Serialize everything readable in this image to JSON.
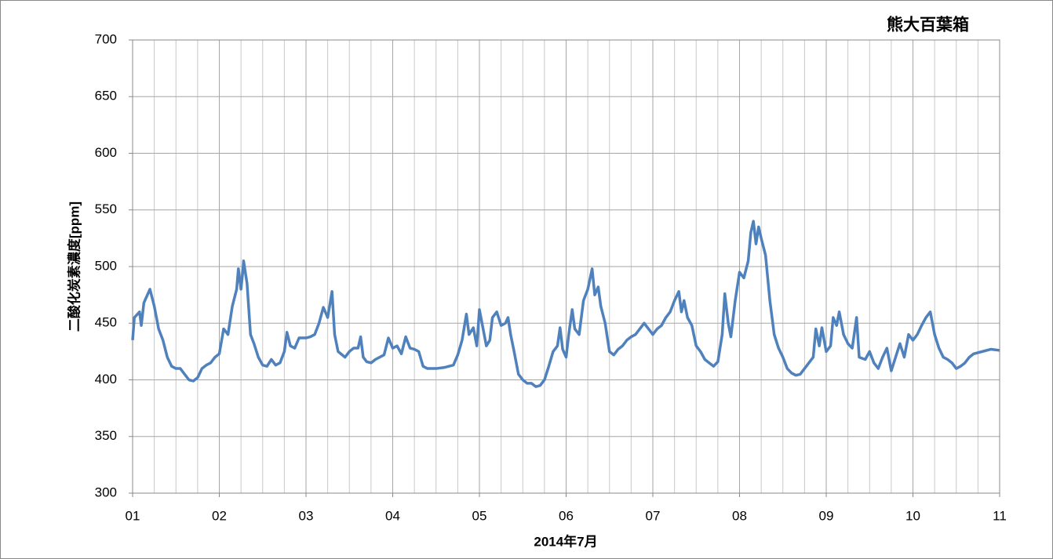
{
  "chart_data": {
    "type": "line",
    "title": "熊大百葉箱",
    "xlabel": "2014年7月",
    "ylabel": "二酸化炭素濃度[ppm]",
    "xlim": [
      1,
      11
    ],
    "xticks": [
      {
        "value": 1,
        "label": "01"
      },
      {
        "value": 2,
        "label": "02"
      },
      {
        "value": 3,
        "label": "03"
      },
      {
        "value": 4,
        "label": "04"
      },
      {
        "value": 5,
        "label": "05"
      },
      {
        "value": 6,
        "label": "06"
      },
      {
        "value": 7,
        "label": "07"
      },
      {
        "value": 8,
        "label": "08"
      },
      {
        "value": 9,
        "label": "09"
      },
      {
        "value": 10,
        "label": "10"
      },
      11
    ],
    "xminorticks": [
      1.25,
      1.5,
      1.75,
      2.25,
      2.5,
      2.75,
      3.25,
      3.5,
      3.75,
      4.25,
      4.5,
      4.75,
      5.25,
      5.5,
      5.75,
      6.25,
      6.5,
      6.75,
      7.25,
      7.5,
      7.75,
      8.25,
      8.5,
      8.75,
      9.25,
      9.5,
      9.75,
      10.25,
      10.5,
      10.75
    ],
    "ylim": [
      300,
      700
    ],
    "yticks": [
      300,
      350,
      400,
      450,
      500,
      550,
      600,
      650,
      700
    ],
    "grid": true,
    "x": [
      1.0,
      1.02,
      1.08,
      1.1,
      1.13,
      1.2,
      1.25,
      1.3,
      1.35,
      1.4,
      1.45,
      1.5,
      1.55,
      1.6,
      1.65,
      1.7,
      1.75,
      1.8,
      1.85,
      1.9,
      1.95,
      2.0,
      2.05,
      2.1,
      2.15,
      2.2,
      2.22,
      2.25,
      2.27,
      2.28,
      2.32,
      2.36,
      2.4,
      2.45,
      2.5,
      2.55,
      2.6,
      2.65,
      2.7,
      2.75,
      2.78,
      2.82,
      2.87,
      2.92,
      3.0,
      3.05,
      3.1,
      3.15,
      3.2,
      3.25,
      3.3,
      3.33,
      3.37,
      3.45,
      3.5,
      3.55,
      3.6,
      3.63,
      3.66,
      3.7,
      3.75,
      3.8,
      3.9,
      3.95,
      4.0,
      4.05,
      4.1,
      4.15,
      4.2,
      4.25,
      4.3,
      4.35,
      4.4,
      4.5,
      4.6,
      4.7,
      4.75,
      4.8,
      4.85,
      4.88,
      4.93,
      4.97,
      5.0,
      5.03,
      5.08,
      5.12,
      5.15,
      5.2,
      5.25,
      5.3,
      5.33,
      5.36,
      5.4,
      5.45,
      5.5,
      5.55,
      5.6,
      5.65,
      5.7,
      5.75,
      5.8,
      5.85,
      5.9,
      5.93,
      5.96,
      6.0,
      6.03,
      6.07,
      6.1,
      6.15,
      6.2,
      6.25,
      6.3,
      6.33,
      6.37,
      6.4,
      6.45,
      6.5,
      6.55,
      6.6,
      6.65,
      6.7,
      6.75,
      6.8,
      6.85,
      6.9,
      6.95,
      7.0,
      7.05,
      7.1,
      7.15,
      7.2,
      7.25,
      7.3,
      7.33,
      7.36,
      7.4,
      7.45,
      7.5,
      7.55,
      7.6,
      7.65,
      7.7,
      7.75,
      7.8,
      7.83,
      7.87,
      7.9,
      7.95,
      8.0,
      8.05,
      8.1,
      8.13,
      8.16,
      8.19,
      8.22,
      8.25,
      8.3,
      8.35,
      8.4,
      8.45,
      8.5,
      8.55,
      8.6,
      8.65,
      8.7,
      8.75,
      8.8,
      8.85,
      8.88,
      8.92,
      8.95,
      9.0,
      9.05,
      9.08,
      9.12,
      9.15,
      9.2,
      9.25,
      9.3,
      9.35,
      9.38,
      9.45,
      9.5,
      9.55,
      9.6,
      9.65,
      9.7,
      9.75,
      9.8,
      9.85,
      9.9,
      9.95,
      10.0,
      10.05,
      10.1,
      10.15,
      10.2,
      10.25,
      10.3,
      10.35,
      10.4,
      10.45,
      10.5,
      10.55,
      10.6,
      10.65,
      10.7,
      10.8,
      10.9,
      11.0
    ],
    "series": [
      {
        "color": "#4f81bd",
        "values": [
          435,
          455,
          460,
          448,
          468,
          480,
          465,
          445,
          435,
          420,
          412,
          410,
          410,
          405,
          400,
          399,
          402,
          410,
          413,
          415,
          420,
          423,
          445,
          440,
          465,
          480,
          498,
          480,
          495,
          505,
          485,
          440,
          432,
          420,
          413,
          412,
          418,
          413,
          415,
          425,
          442,
          430,
          428,
          437,
          437,
          438,
          440,
          450,
          464,
          455,
          478,
          440,
          425,
          420,
          425,
          428,
          428,
          438,
          420,
          416,
          415,
          418,
          422,
          437,
          428,
          430,
          423,
          438,
          428,
          427,
          425,
          412,
          410,
          410,
          411,
          413,
          422,
          435,
          458,
          440,
          446,
          430,
          462,
          450,
          430,
          435,
          455,
          460,
          448,
          450,
          455,
          440,
          425,
          405,
          400,
          397,
          397,
          394,
          395,
          400,
          412,
          425,
          430,
          446,
          427,
          420,
          440,
          462,
          445,
          440,
          470,
          480,
          498,
          475,
          482,
          465,
          450,
          425,
          422,
          427,
          430,
          435,
          438,
          440,
          445,
          450,
          445,
          440,
          445,
          448,
          455,
          460,
          470,
          478,
          460,
          470,
          455,
          448,
          430,
          425,
          418,
          415,
          412,
          416,
          440,
          476,
          450,
          438,
          470,
          495,
          490,
          505,
          530,
          540,
          520,
          535,
          525,
          510,
          470,
          440,
          428,
          420,
          410,
          406,
          404,
          405,
          410,
          415,
          420,
          445,
          430,
          446,
          425,
          430,
          455,
          448,
          460,
          440,
          432,
          428,
          455,
          420,
          418,
          425,
          415,
          410,
          420,
          428,
          408,
          420,
          432,
          420,
          440,
          435,
          440,
          448,
          455,
          460,
          440,
          428,
          420,
          418,
          415,
          410,
          412,
          415,
          420,
          423,
          425,
          427,
          426
        ]
      }
    ]
  }
}
